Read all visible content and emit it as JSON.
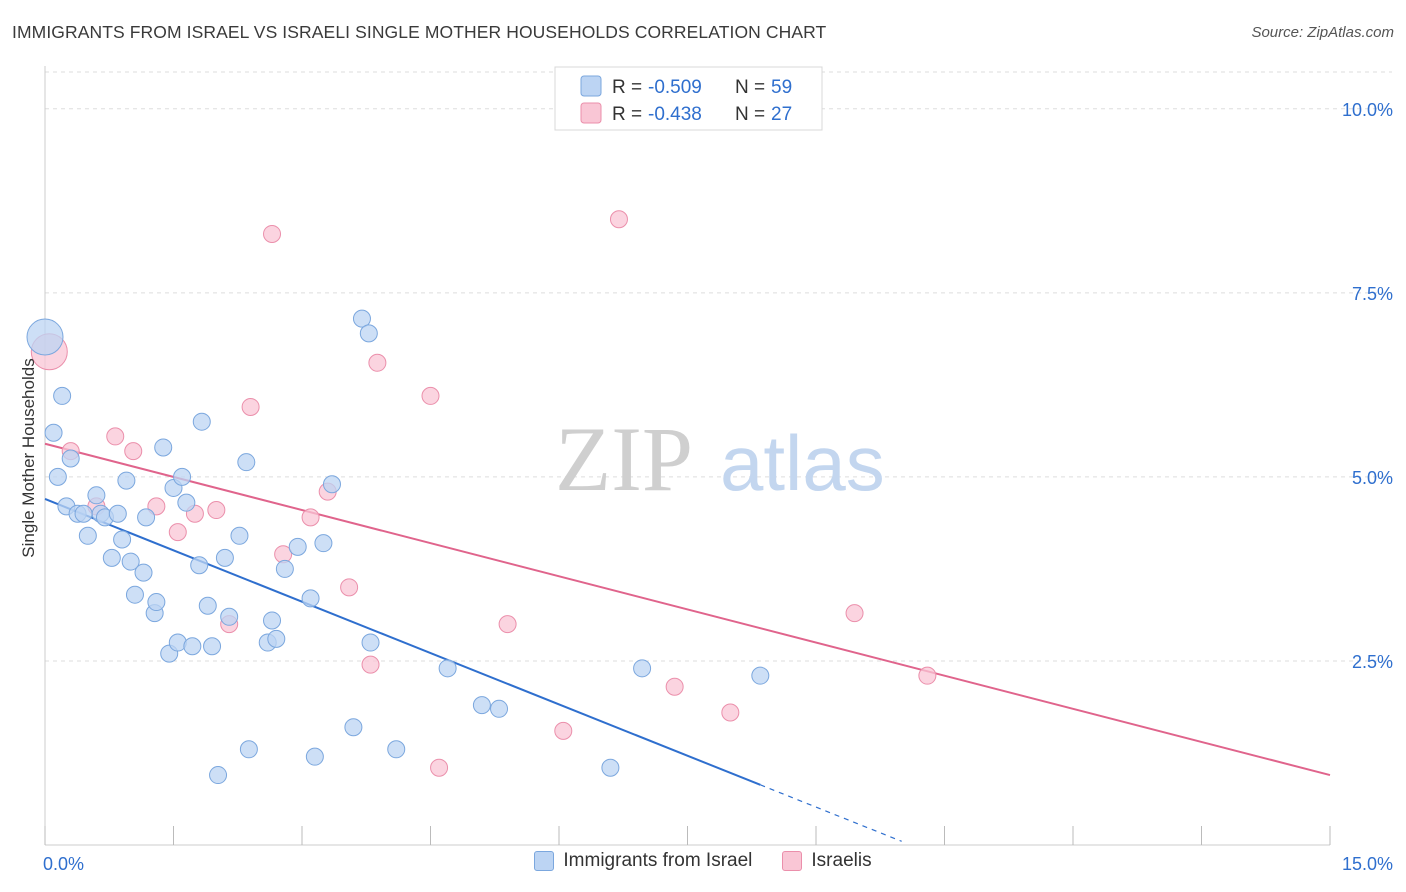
{
  "title": "IMMIGRANTS FROM ISRAEL VS ISRAELI SINGLE MOTHER HOUSEHOLDS CORRELATION CHART",
  "source": "Source: ZipAtlas.com",
  "watermark": {
    "bold": "ZIP",
    "light": "atlas"
  },
  "chart_data": {
    "type": "scatter",
    "ylabel": "Single Mother Households",
    "xlabel": "",
    "xlim": [
      0,
      15
    ],
    "ylim": [
      0,
      10.5
    ],
    "x_tick_labels": [
      {
        "value": 0,
        "label": "0.0%"
      },
      {
        "value": 15,
        "label": "15.0%"
      }
    ],
    "y_ticks": [
      {
        "value": 2.5,
        "label": "2.5%"
      },
      {
        "value": 5.0,
        "label": "5.0%"
      },
      {
        "value": 7.5,
        "label": "7.5%"
      },
      {
        "value": 10.0,
        "label": "10.0%"
      }
    ],
    "grid": true,
    "legend_position": "top-center",
    "colors": {
      "israel_fill": "#bcd4f3",
      "israel_stroke": "#7ba7de",
      "israel_line": "#2f6fce",
      "israelis_fill": "#f9c6d5",
      "israelis_stroke": "#eb8fab",
      "israelis_line": "#e0648c",
      "value_text": "#2f6fce"
    },
    "series": [
      {
        "name": "Immigrants from Israel",
        "R": "-0.509",
        "N": "59",
        "trend": {
          "x0": 0.0,
          "y0": 4.7,
          "x1": 10.0,
          "y1": 0.05,
          "solid_until": 8.35
        },
        "points": [
          [
            0.0,
            6.9,
            1
          ],
          [
            0.1,
            5.6,
            0
          ],
          [
            0.15,
            5.0,
            0
          ],
          [
            0.2,
            6.1,
            0
          ],
          [
            0.25,
            4.6,
            0
          ],
          [
            0.3,
            5.25,
            0
          ],
          [
            0.38,
            4.5,
            0
          ],
          [
            0.45,
            4.5,
            0
          ],
          [
            0.5,
            4.2,
            0
          ],
          [
            0.6,
            4.75,
            0
          ],
          [
            0.65,
            4.5,
            0
          ],
          [
            0.7,
            4.45,
            0
          ],
          [
            0.78,
            3.9,
            0
          ],
          [
            0.85,
            4.5,
            0
          ],
          [
            0.9,
            4.15,
            0
          ],
          [
            0.95,
            4.95,
            0
          ],
          [
            1.0,
            3.85,
            0
          ],
          [
            1.05,
            3.4,
            0
          ],
          [
            1.15,
            3.7,
            0
          ],
          [
            1.18,
            4.45,
            0
          ],
          [
            1.28,
            3.15,
            0
          ],
          [
            1.3,
            3.3,
            0
          ],
          [
            1.38,
            5.4,
            0
          ],
          [
            1.45,
            2.6,
            0
          ],
          [
            1.5,
            4.85,
            0
          ],
          [
            1.55,
            2.75,
            0
          ],
          [
            1.6,
            5.0,
            0
          ],
          [
            1.65,
            4.65,
            0
          ],
          [
            1.72,
            2.7,
            0
          ],
          [
            1.8,
            3.8,
            0
          ],
          [
            1.83,
            5.75,
            0
          ],
          [
            1.9,
            3.25,
            0
          ],
          [
            1.95,
            2.7,
            0
          ],
          [
            2.02,
            0.95,
            0
          ],
          [
            2.1,
            3.9,
            0
          ],
          [
            2.15,
            3.1,
            0
          ],
          [
            2.27,
            4.2,
            0
          ],
          [
            2.35,
            5.2,
            0
          ],
          [
            2.38,
            1.3,
            0
          ],
          [
            2.6,
            2.75,
            0
          ],
          [
            2.65,
            3.05,
            0
          ],
          [
            2.7,
            2.8,
            0
          ],
          [
            2.8,
            3.75,
            0
          ],
          [
            2.95,
            4.05,
            0
          ],
          [
            3.1,
            3.35,
            0
          ],
          [
            3.15,
            1.2,
            0
          ],
          [
            3.25,
            4.1,
            0
          ],
          [
            3.35,
            4.9,
            0
          ],
          [
            3.6,
            1.6,
            0
          ],
          [
            3.7,
            7.15,
            0
          ],
          [
            3.78,
            6.95,
            0
          ],
          [
            3.8,
            2.75,
            0
          ],
          [
            4.1,
            1.3,
            0
          ],
          [
            4.7,
            2.4,
            0
          ],
          [
            5.1,
            1.9,
            0
          ],
          [
            5.3,
            1.85,
            0
          ],
          [
            6.6,
            1.05,
            0
          ],
          [
            6.97,
            2.4,
            0
          ],
          [
            8.35,
            2.3,
            0
          ]
        ]
      },
      {
        "name": "Israelis",
        "R": "-0.438",
        "N": "27",
        "trend": {
          "x0": 0.0,
          "y0": 5.45,
          "x1": 15.0,
          "y1": 0.95,
          "solid_until": 15.0
        },
        "points": [
          [
            0.05,
            6.7,
            1
          ],
          [
            0.3,
            5.35,
            0
          ],
          [
            0.6,
            4.6,
            0
          ],
          [
            0.82,
            5.55,
            0
          ],
          [
            1.03,
            5.35,
            0
          ],
          [
            1.3,
            4.6,
            0
          ],
          [
            1.55,
            4.25,
            0
          ],
          [
            1.75,
            4.5,
            0
          ],
          [
            2.0,
            4.55,
            0
          ],
          [
            2.15,
            3.0,
            0
          ],
          [
            2.4,
            5.95,
            0
          ],
          [
            2.65,
            8.3,
            0
          ],
          [
            2.78,
            3.95,
            0
          ],
          [
            3.1,
            4.45,
            0
          ],
          [
            3.3,
            4.8,
            0
          ],
          [
            3.55,
            3.5,
            0
          ],
          [
            3.8,
            2.45,
            0
          ],
          [
            3.88,
            6.55,
            0
          ],
          [
            4.5,
            6.1,
            0
          ],
          [
            4.6,
            1.05,
            0
          ],
          [
            5.4,
            3.0,
            0
          ],
          [
            6.05,
            1.55,
            0
          ],
          [
            6.7,
            8.5,
            0
          ],
          [
            7.35,
            2.15,
            0
          ],
          [
            8.0,
            1.8,
            0
          ],
          [
            9.45,
            3.15,
            0
          ],
          [
            10.3,
            2.3,
            0
          ]
        ]
      }
    ]
  },
  "legend": {
    "r_label": "R =",
    "n_label": "N =",
    "items": [
      {
        "r_value": "-0.509",
        "n_value": "59"
      },
      {
        "r_value": "-0.438",
        "n_value": "27"
      }
    ]
  },
  "bottom_legend": [
    {
      "label": "Immigrants from Israel"
    },
    {
      "label": "Israelis"
    }
  ]
}
